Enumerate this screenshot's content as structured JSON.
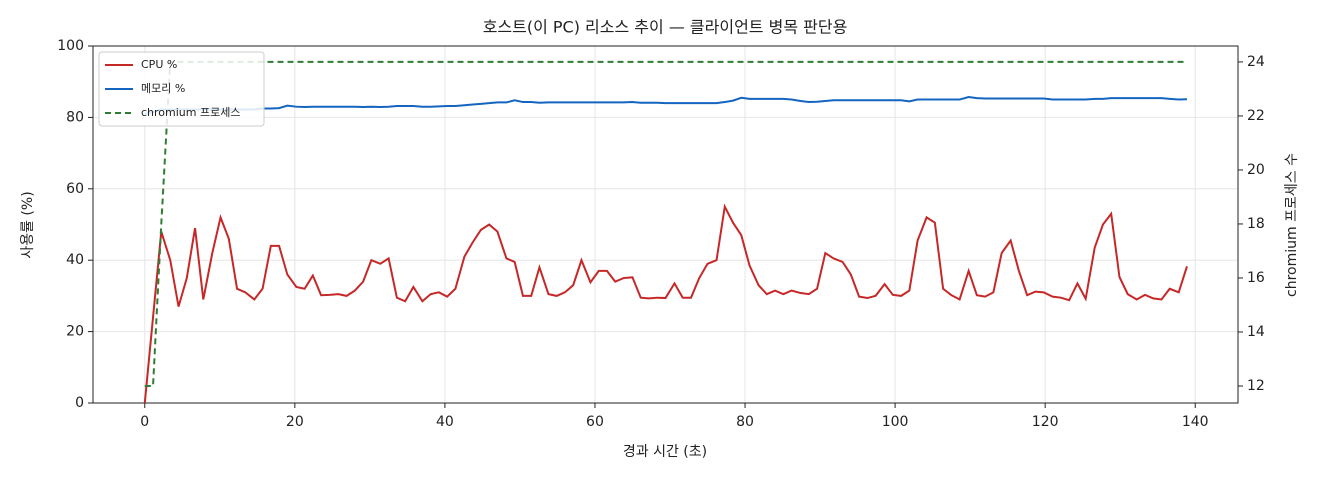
{
  "chart_data": {
    "type": "line",
    "title": "호스트(이 PC) 리소스 추이 — 클라이언트 병목 판단용",
    "x_label": "경과 시간 (초)",
    "y_label": "사용률 (%)",
    "y2_label": "chromium 프로세스 수",
    "x": [
      0,
      1.1,
      2.2,
      3.4,
      4.5,
      5.6,
      6.7,
      7.8,
      9.0,
      10.1,
      11.2,
      12.3,
      13.4,
      14.6,
      15.7,
      16.8,
      17.9,
      19.0,
      20.2,
      21.3,
      22.4,
      23.5,
      24.6,
      25.8,
      26.9,
      28.0,
      29.1,
      30.2,
      31.4,
      32.5,
      33.6,
      34.7,
      35.8,
      37.0,
      38.1,
      39.2,
      40.3,
      41.4,
      42.6,
      43.7,
      44.8,
      45.9,
      47.0,
      48.2,
      49.3,
      50.4,
      51.5,
      52.6,
      53.8,
      54.9,
      56.0,
      57.1,
      58.2,
      59.4,
      60.5,
      61.6,
      62.7,
      63.8,
      65.0,
      66.1,
      67.2,
      68.3,
      69.4,
      70.6,
      71.7,
      72.8,
      73.9,
      75.0,
      76.2,
      77.3,
      78.4,
      79.5,
      80.6,
      81.8,
      82.9,
      84.0,
      85.1,
      86.2,
      87.4,
      88.5,
      89.6,
      90.7,
      91.8,
      93.0,
      94.1,
      95.2,
      96.3,
      97.4,
      98.6,
      99.7,
      100.8,
      101.9,
      103.0,
      104.2,
      105.3,
      106.4,
      107.5,
      108.6,
      109.8,
      110.9,
      112.0,
      113.1,
      114.2,
      115.4,
      116.5,
      117.6,
      118.7,
      119.8,
      121.0,
      122.1,
      123.2,
      124.3,
      125.4,
      126.6,
      127.7,
      128.8,
      129.9,
      131.0,
      132.2,
      133.3,
      134.4,
      135.5,
      136.6,
      137.8,
      138.9
    ],
    "series": [
      {
        "name": "CPU %",
        "color": "#c62828",
        "linestyle": "solid",
        "values": [
          0,
          24,
          48,
          40,
          27,
          35,
          49,
          29,
          42,
          52,
          46,
          32,
          31,
          29,
          32,
          44,
          44,
          36,
          32.5,
          32,
          35.7,
          30.2,
          30.3,
          30.5,
          30,
          31.5,
          34,
          40,
          39,
          40.5,
          29.5,
          28.5,
          32.5,
          28.5,
          30.5,
          31,
          29.8,
          32,
          41,
          45,
          48.5,
          50,
          48,
          40.5,
          39.5,
          30,
          30,
          38,
          30.5,
          30,
          31,
          33,
          40,
          33.8,
          37,
          37,
          34,
          35,
          35.2,
          29.5,
          29.3,
          29.5,
          29.4,
          33.5,
          29.5,
          29.5,
          35,
          39,
          40,
          55,
          50.5,
          47,
          38.5,
          33,
          30.5,
          31.5,
          30.5,
          31.5,
          30.8,
          30.5,
          32,
          42,
          40.5,
          39.5,
          36,
          29.8,
          29.4,
          30,
          33.3,
          30.3,
          30,
          31.5,
          45.5,
          52,
          50.5,
          32,
          30.2,
          29,
          37,
          30.2,
          29.8,
          31,
          42,
          45.5,
          37,
          30.2,
          31.2,
          31,
          29.8,
          29.5,
          28.8,
          33.5,
          29.2,
          43.5,
          50,
          53,
          35.3,
          30.5,
          29,
          30.3,
          29.3,
          29,
          32,
          31,
          38.3
        ]
      },
      {
        "name": "메모리 %",
        "color": "#1565c0",
        "linestyle": "solid",
        "values": [
          81,
          81.5,
          82.2,
          82.2,
          82.2,
          82.2,
          82.2,
          82.2,
          82.2,
          82.2,
          82.2,
          82.2,
          82.2,
          82.2,
          82.5,
          82.5,
          82.6,
          83.3,
          83,
          82.9,
          83,
          83,
          83,
          83,
          83,
          83,
          82.9,
          83,
          82.9,
          83,
          83.2,
          83.2,
          83.2,
          83,
          83,
          83.1,
          83.2,
          83.2,
          83.4,
          83.6,
          83.8,
          84,
          84.2,
          84.2,
          84.8,
          84.3,
          84.3,
          84.1,
          84.2,
          84.2,
          84.2,
          84.2,
          84.2,
          84.2,
          84.2,
          84.2,
          84.2,
          84.2,
          84.3,
          84.1,
          84.1,
          84.1,
          84,
          84,
          84,
          84,
          84,
          84,
          84,
          84.3,
          84.7,
          85.5,
          85.2,
          85.2,
          85.2,
          85.2,
          85.2,
          85,
          84.6,
          84.3,
          84.4,
          84.6,
          84.8,
          84.8,
          84.8,
          84.8,
          84.8,
          84.8,
          84.8,
          84.8,
          84.8,
          84.5,
          85,
          85,
          85,
          85,
          85,
          85,
          85.7,
          85.4,
          85.3,
          85.3,
          85.3,
          85.3,
          85.3,
          85.3,
          85.3,
          85.3,
          85,
          85,
          85,
          85,
          85,
          85.2,
          85.2,
          85.4,
          85.4,
          85.4,
          85.4,
          85.4,
          85.4,
          85.4,
          85.2,
          85,
          85.1
        ]
      },
      {
        "name": "chromium 프로세스",
        "color": "#2e7d32",
        "linestyle": "dashed",
        "axis": "y2",
        "values": [
          12,
          12,
          18,
          24,
          24,
          24,
          24,
          24,
          24,
          24,
          24,
          24,
          24,
          24,
          24,
          24,
          24,
          24,
          24,
          24,
          24,
          24,
          24,
          24,
          24,
          24,
          24,
          24,
          24,
          24,
          24,
          24,
          24,
          24,
          24,
          24,
          24,
          24,
          24,
          24,
          24,
          24,
          24,
          24,
          24,
          24,
          24,
          24,
          24,
          24,
          24,
          24,
          24,
          24,
          24,
          24,
          24,
          24,
          24,
          24,
          24,
          24,
          24,
          24,
          24,
          24,
          24,
          24,
          24,
          24,
          24,
          24,
          24,
          24,
          24,
          24,
          24,
          24,
          24,
          24,
          24,
          24,
          24,
          24,
          24,
          24,
          24,
          24,
          24,
          24,
          24,
          24,
          24,
          24,
          24,
          24,
          24,
          24,
          24,
          24,
          24,
          24,
          24,
          24,
          24,
          24,
          24,
          24,
          24,
          24,
          24,
          24,
          24,
          24,
          24,
          24,
          24,
          24,
          24,
          24,
          24,
          24,
          24,
          24,
          24
        ]
      }
    ],
    "xlim": [
      -6.9,
      145.7
    ],
    "xticks": [
      0,
      20,
      40,
      60,
      80,
      100,
      120,
      140
    ],
    "ylim": [
      0,
      100
    ],
    "yticks": [
      0,
      20,
      40,
      60,
      80,
      100
    ],
    "y2lim": [
      11.37,
      24.59
    ],
    "y2ticks": [
      12,
      14,
      16,
      18,
      20,
      22,
      24
    ],
    "grid": true,
    "legend": "upper-left"
  }
}
